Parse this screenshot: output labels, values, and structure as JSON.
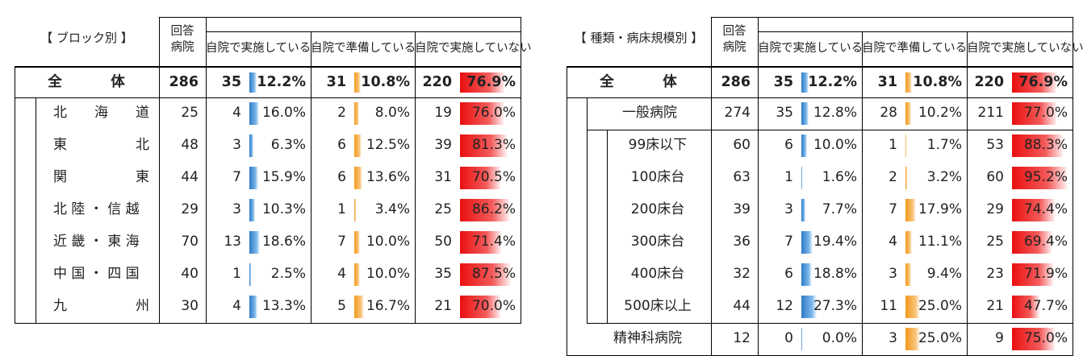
{
  "left": {
    "title": "【 ブロック別 】",
    "header_respondents": "回答\n病院",
    "col_implemented": "自院で実施している",
    "col_preparing": "自院で準備している",
    "col_not_implemented": "自院で実施していない",
    "total": {
      "label": "全　　　体",
      "n": "286",
      "a": "35",
      "ap": "12.2%",
      "b": "31",
      "bp": "10.8%",
      "c": "220",
      "cp": "76.9%"
    },
    "rows": [
      {
        "label": "北　　海　　道",
        "n": "25",
        "a": "4",
        "ap": "16.0%",
        "b": "2",
        "bp": "8.0%",
        "c": "19",
        "cp": "76.0%"
      },
      {
        "label": "東　　　　　北",
        "n": "48",
        "a": "3",
        "ap": "6.3%",
        "b": "6",
        "bp": "12.5%",
        "c": "39",
        "cp": "81.3%"
      },
      {
        "label": "関　　　　　東",
        "n": "44",
        "a": "7",
        "ap": "15.9%",
        "b": "6",
        "bp": "13.6%",
        "c": "31",
        "cp": "70.5%"
      },
      {
        "label": "北 陸 ・ 信 越",
        "n": "29",
        "a": "3",
        "ap": "10.3%",
        "b": "1",
        "bp": "3.4%",
        "c": "25",
        "cp": "86.2%"
      },
      {
        "label": "近 畿 ・ 東 海",
        "n": "70",
        "a": "13",
        "ap": "18.6%",
        "b": "7",
        "bp": "10.0%",
        "c": "50",
        "cp": "71.4%"
      },
      {
        "label": "中 国 ・ 四 国",
        "n": "40",
        "a": "1",
        "ap": "2.5%",
        "b": "4",
        "bp": "10.0%",
        "c": "35",
        "cp": "87.5%"
      },
      {
        "label": "九　　　　　州",
        "n": "30",
        "a": "4",
        "ap": "13.3%",
        "b": "5",
        "bp": "16.7%",
        "c": "21",
        "cp": "70.0%"
      }
    ]
  },
  "right": {
    "title": "【 種類・病床規模別 】",
    "header_respondents": "回答\n病院",
    "col_implemented": "自院で実施している",
    "col_preparing": "自院で準備している",
    "col_not_implemented": "自院で実施していない",
    "total": {
      "label": "全　　　体",
      "n": "286",
      "a": "35",
      "ap": "12.2%",
      "b": "31",
      "bp": "10.8%",
      "c": "220",
      "cp": "76.9%"
    },
    "rows": [
      {
        "label": "一般病院",
        "n": "274",
        "a": "35",
        "ap": "12.8%",
        "b": "28",
        "bp": "10.2%",
        "c": "211",
        "cp": "77.0%"
      },
      {
        "label": "99床以下",
        "n": "60",
        "a": "6",
        "ap": "10.0%",
        "b": "1",
        "bp": "1.7%",
        "c": "53",
        "cp": "88.3%"
      },
      {
        "label": "100床台",
        "n": "63",
        "a": "1",
        "ap": "1.6%",
        "b": "2",
        "bp": "3.2%",
        "c": "60",
        "cp": "95.2%"
      },
      {
        "label": "200床台",
        "n": "39",
        "a": "3",
        "ap": "7.7%",
        "b": "7",
        "bp": "17.9%",
        "c": "29",
        "cp": "74.4%"
      },
      {
        "label": "300床台",
        "n": "36",
        "a": "7",
        "ap": "19.4%",
        "b": "4",
        "bp": "11.1%",
        "c": "25",
        "cp": "69.4%"
      },
      {
        "label": "400床台",
        "n": "32",
        "a": "6",
        "ap": "18.8%",
        "b": "3",
        "bp": "9.4%",
        "c": "23",
        "cp": "71.9%"
      },
      {
        "label": "500床以上",
        "n": "44",
        "a": "12",
        "ap": "27.3%",
        "b": "11",
        "bp": "25.0%",
        "c": "21",
        "cp": "47.7%"
      },
      {
        "label": "精神科病院",
        "n": "12",
        "a": "0",
        "ap": "0.0%",
        "b": "3",
        "bp": "25.0%",
        "c": "9",
        "cp": "75.0%"
      }
    ]
  },
  "colors": {
    "implemented": "#2e7bc8",
    "preparing": "#f39a1c",
    "not_implemented": "#ea0f0f"
  }
}
